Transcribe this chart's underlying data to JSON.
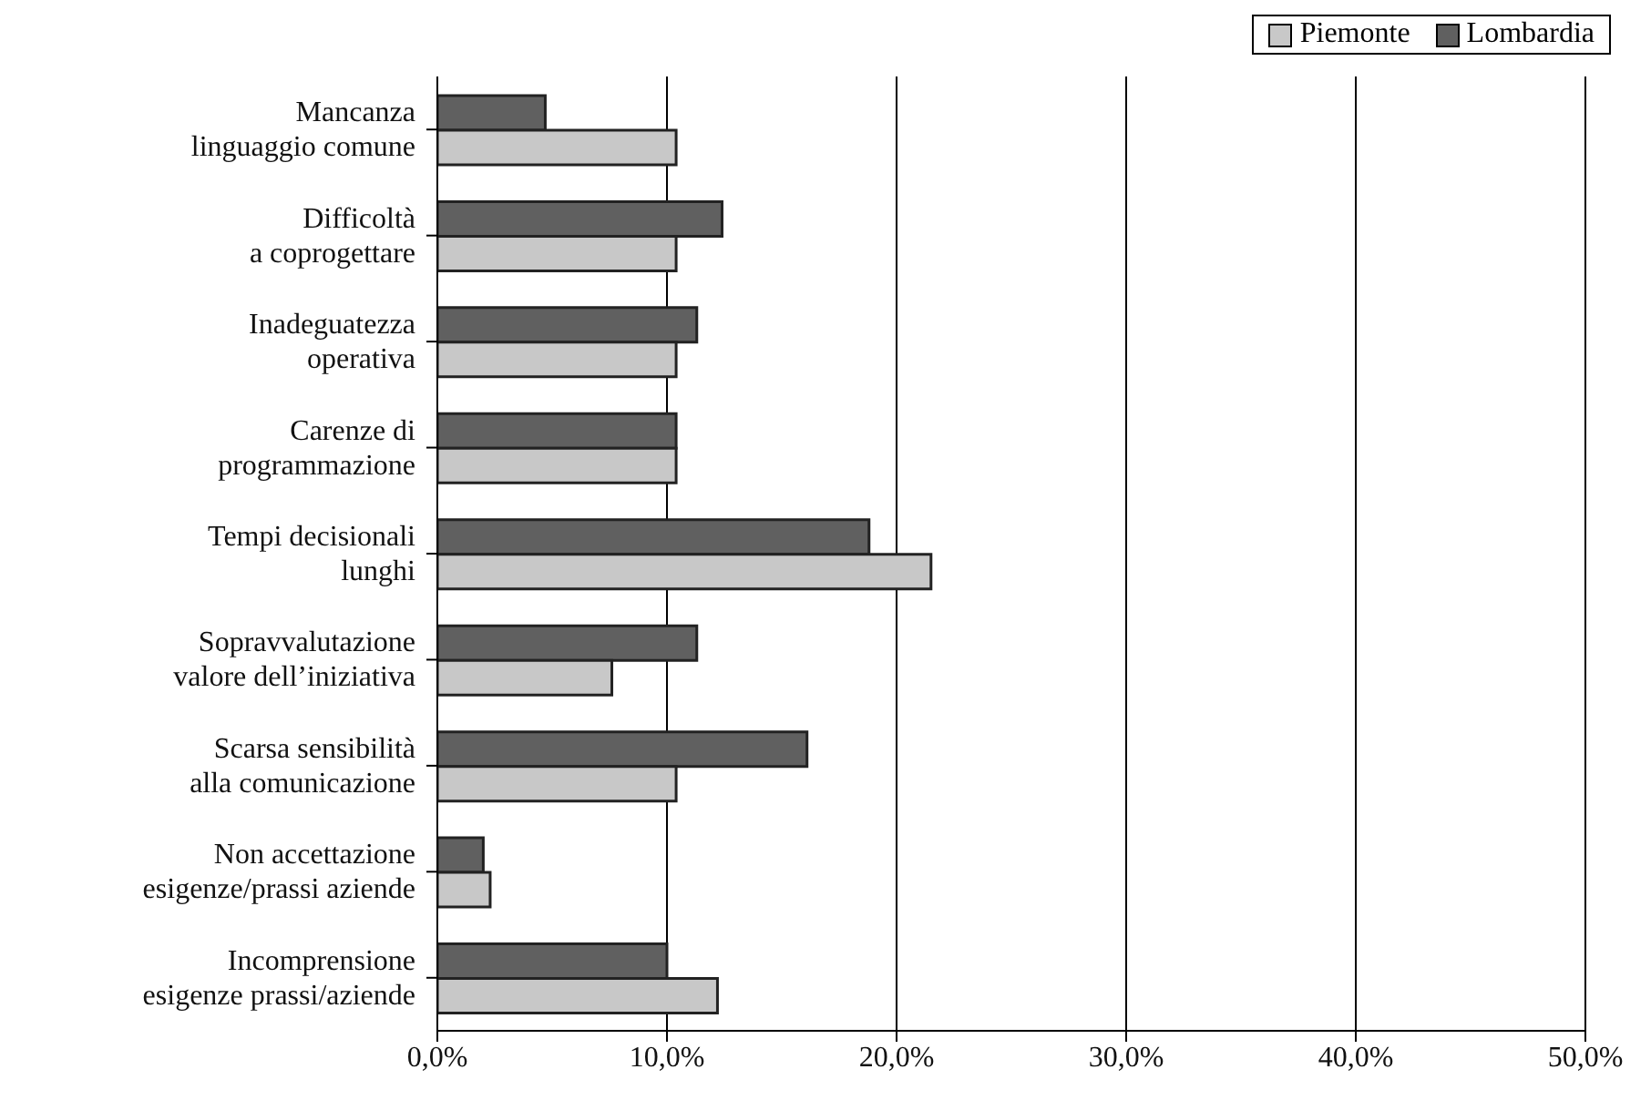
{
  "chart_data": {
    "type": "bar",
    "orientation": "horizontal",
    "categories": [
      "Mancanza\nlinguaggio comune",
      "Difficoltà\na coprogettare",
      "Inadeguatezza\noperativa",
      "Carenze di\nprogrammazione",
      "Tempi decisionali\nlunghi",
      "Sopravvalutazione\nvalore dell’iniziativa",
      "Scarsa sensibilità\nalla comunicazione",
      "Non accettazione\nesigenze/prassi aziende",
      "Incomprensione\nesigenze prassi/aziende"
    ],
    "series": [
      {
        "name": "Piemonte",
        "color": "#c8c8c8",
        "values": [
          10.4,
          10.4,
          10.4,
          10.4,
          21.5,
          7.6,
          10.4,
          2.3,
          12.2
        ]
      },
      {
        "name": "Lombardia",
        "color": "#606060",
        "values": [
          4.7,
          12.4,
          11.3,
          10.4,
          18.8,
          11.3,
          16.1,
          2.0,
          10.0
        ]
      }
    ],
    "xlim": [
      0,
      50
    ],
    "xticks": [
      {
        "value": 0,
        "label": "0,0%"
      },
      {
        "value": 10,
        "label": "10,0%"
      },
      {
        "value": 20,
        "label": "20,0%"
      },
      {
        "value": 30,
        "label": "30,0%"
      },
      {
        "value": 40,
        "label": "40,0%"
      },
      {
        "value": 50,
        "label": "50,0%"
      }
    ],
    "grid": "x",
    "legend": "top right"
  }
}
